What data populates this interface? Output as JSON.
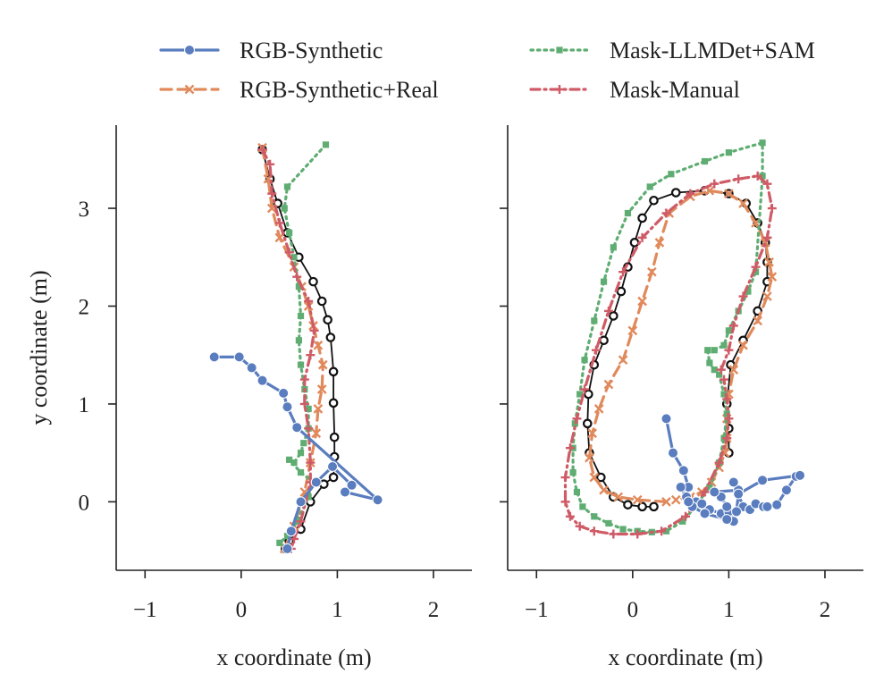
{
  "chart_data": [
    {
      "type": "line",
      "panel": "left",
      "xlabel": "x coordinate (m)",
      "ylabel": "y coordinate (m)",
      "xlim": [
        -1.3,
        2.4
      ],
      "ylim": [
        -0.7,
        3.85
      ],
      "xticks": [
        -1,
        0,
        1,
        2
      ],
      "yticks": [
        0,
        1,
        2,
        3
      ],
      "grid": false,
      "series": [
        {
          "name": "RGB-Synthetic",
          "key": "rgb_synthetic",
          "x": [
            -0.28,
            -0.02,
            0.11,
            0.22,
            0.44,
            0.48,
            0.58,
            1.42,
            1.08,
            1.15,
            0.95,
            0.78,
            0.62,
            0.52,
            0.48
          ],
          "y": [
            1.48,
            1.48,
            1.37,
            1.24,
            1.11,
            0.97,
            0.76,
            0.02,
            0.1,
            0.17,
            0.36,
            0.2,
            0.0,
            -0.3,
            -0.48
          ]
        },
        {
          "name": "RGB-Synthetic+Real",
          "key": "rgb_synthetic_real",
          "x": [
            0.22,
            0.28,
            0.32,
            0.4,
            0.55,
            0.63,
            0.7,
            0.75,
            0.8,
            0.85,
            0.84,
            0.8,
            0.78,
            0.72,
            0.66,
            0.55,
            0.45
          ],
          "y": [
            3.62,
            3.3,
            3.0,
            2.7,
            2.4,
            2.2,
            2.0,
            1.8,
            1.6,
            1.4,
            1.15,
            0.95,
            0.7,
            0.4,
            0.1,
            -0.25,
            -0.48
          ]
        },
        {
          "name": "Mask-LLMDet+SAM",
          "key": "mask_llmdet_sam",
          "x": [
            0.88,
            0.48,
            0.45,
            0.5,
            0.55,
            0.6,
            0.62,
            0.6,
            0.62,
            0.66,
            0.7,
            0.7,
            0.65,
            0.62,
            0.55,
            0.5,
            0.62,
            0.75,
            0.7,
            0.58,
            0.48,
            0.4
          ],
          "y": [
            3.65,
            3.22,
            3.0,
            2.75,
            2.5,
            2.2,
            1.9,
            1.65,
            1.4,
            1.15,
            0.95,
            0.75,
            0.6,
            0.5,
            0.4,
            0.43,
            0.3,
            0.2,
            0.05,
            -0.2,
            -0.35,
            -0.42
          ]
        },
        {
          "name": "Mask-Manual",
          "key": "mask_manual",
          "x": [
            0.22,
            0.3,
            0.32,
            0.4,
            0.5,
            0.58,
            0.7,
            0.76,
            0.72,
            0.66,
            0.66,
            0.7,
            0.72,
            0.72,
            0.62,
            0.55,
            0.52
          ],
          "y": [
            3.6,
            3.45,
            3.15,
            2.85,
            2.55,
            2.3,
            2.05,
            1.75,
            1.5,
            1.25,
            1.0,
            0.75,
            0.4,
            0.2,
            -0.2,
            -0.38,
            -0.48
          ]
        },
        {
          "name": "Ground truth",
          "key": "ground_truth",
          "legend": false,
          "x": [
            0.22,
            0.3,
            0.38,
            0.48,
            0.6,
            0.75,
            0.84,
            0.9,
            0.93,
            0.96,
            0.96,
            0.97,
            0.97,
            0.96,
            0.86,
            0.72,
            0.62,
            0.5,
            0.46
          ],
          "y": [
            3.6,
            3.3,
            3.05,
            2.75,
            2.5,
            2.25,
            2.05,
            1.86,
            1.68,
            1.33,
            1.01,
            0.66,
            0.46,
            0.25,
            0.18,
            0.0,
            -0.28,
            -0.4,
            -0.48
          ]
        }
      ]
    },
    {
      "type": "line",
      "panel": "right",
      "xlabel": "x coordinate (m)",
      "ylabel": "",
      "xlim": [
        -1.3,
        2.4
      ],
      "ylim": [
        -0.7,
        3.85
      ],
      "xticks": [
        -1,
        0,
        1,
        2
      ],
      "yticks": [
        0,
        1,
        2,
        3
      ],
      "grid": false,
      "series": [
        {
          "name": "RGB-Synthetic",
          "key": "rgb_synthetic",
          "x": [
            0.35,
            0.42,
            0.53,
            0.58,
            0.56,
            0.66,
            0.72,
            0.8,
            0.92,
            1.0,
            1.05,
            0.98,
            0.92,
            0.85,
            1.1,
            1.05,
            1.15,
            1.22,
            1.28,
            1.36,
            1.4,
            1.5,
            1.6,
            1.7,
            1.74,
            1.35,
            1.1,
            1.08,
            0.98,
            0.75,
            0.62,
            0.58,
            0.5
          ],
          "y": [
            0.85,
            0.5,
            0.32,
            0.15,
            0.05,
            0.0,
            -0.02,
            -0.08,
            -0.12,
            -0.1,
            -0.2,
            -0.05,
            0.05,
            0.1,
            0.12,
            0.2,
            -0.05,
            -0.08,
            -0.02,
            -0.05,
            -0.05,
            -0.03,
            0.12,
            0.26,
            0.27,
            0.22,
            0.08,
            -0.1,
            -0.18,
            -0.12,
            -0.05,
            0.0,
            0.15
          ]
        },
        {
          "name": "RGB-Synthetic+Real",
          "key": "rgb_synthetic_real",
          "x": [
            0.35,
            0.05,
            -0.15,
            -0.3,
            -0.4,
            -0.45,
            -0.42,
            -0.35,
            -0.25,
            -0.1,
            0.0,
            0.1,
            0.2,
            0.28,
            0.38,
            0.6,
            0.8,
            1.0,
            1.15,
            1.28,
            1.38,
            1.42,
            1.45,
            1.4,
            1.3,
            1.15,
            1.05,
            1.0,
            0.98,
            0.98,
            0.96,
            0.9,
            0.82,
            0.72,
            0.6,
            0.45
          ],
          "y": [
            0.0,
            0.02,
            0.05,
            0.12,
            0.25,
            0.45,
            0.7,
            0.95,
            1.2,
            1.45,
            1.75,
            2.05,
            2.35,
            2.65,
            2.95,
            3.12,
            3.18,
            3.15,
            3.05,
            2.85,
            2.65,
            2.45,
            2.3,
            2.1,
            1.85,
            1.6,
            1.35,
            1.1,
            0.85,
            0.65,
            0.5,
            0.35,
            0.2,
            0.1,
            0.05,
            0.02
          ]
        },
        {
          "name": "Mask-LLMDet+SAM",
          "key": "mask_llmdet_sam",
          "x": [
            0.85,
            0.95,
            1.0,
            1.1,
            1.2,
            1.28,
            1.35,
            1.35,
            1.0,
            0.75,
            0.4,
            0.18,
            -0.05,
            -0.2,
            -0.3,
            -0.4,
            -0.5,
            -0.55,
            -0.6,
            -0.62,
            -0.62,
            -0.58,
            -0.52,
            -0.4,
            -0.25,
            -0.1,
            0.05,
            0.2,
            0.35,
            0.52,
            0.65,
            0.8,
            0.9,
            0.95,
            0.98,
            0.95,
            0.9,
            0.85,
            0.8,
            0.78
          ],
          "y": [
            1.55,
            1.6,
            1.75,
            1.95,
            2.15,
            2.35,
            3.33,
            3.67,
            3.57,
            3.48,
            3.35,
            3.22,
            2.95,
            2.6,
            2.25,
            1.85,
            1.45,
            1.1,
            0.8,
            0.55,
            0.3,
            0.1,
            -0.05,
            -0.15,
            -0.22,
            -0.28,
            -0.3,
            -0.31,
            -0.3,
            -0.2,
            -0.05,
            0.15,
            0.4,
            0.65,
            0.9,
            1.1,
            1.3,
            1.35,
            1.42,
            1.55
          ]
        },
        {
          "name": "Mask-Manual",
          "key": "mask_manual",
          "x": [
            0.92,
            1.0,
            1.05,
            1.15,
            1.28,
            1.4,
            1.45,
            1.4,
            1.3,
            1.1,
            0.85,
            0.6,
            0.35,
            0.1,
            -0.1,
            -0.25,
            -0.38,
            -0.5,
            -0.58,
            -0.65,
            -0.7,
            -0.7,
            -0.65,
            -0.55,
            -0.4,
            -0.2,
            0.05,
            0.3,
            0.55,
            0.75,
            0.9,
            0.98,
            1.0,
            0.98,
            0.95
          ],
          "y": [
            1.35,
            1.55,
            1.8,
            2.1,
            2.4,
            2.7,
            3.0,
            3.25,
            3.33,
            3.3,
            3.25,
            3.15,
            2.95,
            2.7,
            2.35,
            1.95,
            1.55,
            1.15,
            0.85,
            0.55,
            0.25,
            0.0,
            -0.15,
            -0.25,
            -0.3,
            -0.33,
            -0.33,
            -0.3,
            -0.15,
            0.1,
            0.4,
            0.65,
            0.85,
            1.05,
            1.25
          ]
        },
        {
          "name": "Ground truth",
          "key": "ground_truth",
          "legend": false,
          "x": [
            0.22,
            0.1,
            -0.05,
            -0.2,
            -0.33,
            -0.45,
            -0.47,
            -0.46,
            -0.4,
            -0.3,
            -0.2,
            -0.12,
            -0.05,
            0.02,
            0.1,
            0.22,
            0.45,
            0.75,
            1.0,
            1.18,
            1.3,
            1.38,
            1.4,
            1.4,
            1.3,
            1.15,
            1.02,
            0.98,
            1.0,
            1.0
          ],
          "y": [
            -0.05,
            -0.05,
            -0.03,
            0.05,
            0.25,
            0.5,
            0.8,
            1.1,
            1.4,
            1.65,
            1.9,
            2.15,
            2.4,
            2.65,
            2.9,
            3.08,
            3.16,
            3.18,
            3.15,
            3.05,
            2.85,
            2.65,
            2.45,
            2.25,
            1.95,
            1.65,
            1.4,
            1.0,
            0.75,
            0.5
          ]
        }
      ]
    }
  ],
  "legend": {
    "items": [
      {
        "label": "RGB-Synthetic",
        "key": "rgb_synthetic"
      },
      {
        "label": "Mask-LLMDet+SAM",
        "key": "mask_llmdet_sam"
      },
      {
        "label": "RGB-Synthetic+Real",
        "key": "rgb_synthetic_real"
      },
      {
        "label": "Mask-Manual",
        "key": "mask_manual"
      }
    ]
  },
  "styles": {
    "rgb_synthetic": {
      "color": "#5a7dbf",
      "dash": "",
      "marker": "circle"
    },
    "rgb_synthetic_real": {
      "color": "#e08a5c",
      "dash": "12 7",
      "marker": "x"
    },
    "mask_llmdet_sam": {
      "color": "#5fad72",
      "dash": "2.5 5",
      "marker": "square"
    },
    "mask_manual": {
      "color": "#cf5b66",
      "dash": "10 5 2 5",
      "marker": "plus"
    },
    "ground_truth": {
      "color": "#111111",
      "dash": "",
      "marker": "hollow-circle"
    }
  }
}
